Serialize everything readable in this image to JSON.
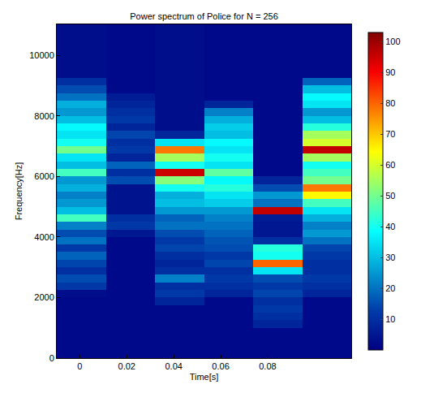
{
  "chart_data": {
    "type": "heatmap",
    "title": "Power spectrum of Police for N = 256",
    "x_label": "Time[s]",
    "y_label": "Frequency[Hz]",
    "x": [
      0.0007,
      0.0216,
      0.0425,
      0.0634,
      0.0843,
      0.1052
    ],
    "y": [
      125,
      375,
      625,
      875,
      1125,
      1375,
      1625,
      1875,
      2125,
      2375,
      2625,
      2875,
      3125,
      3375,
      3625,
      3875,
      4125,
      4375,
      4625,
      4875,
      5125,
      5375,
      5625,
      5875,
      6125,
      6375,
      6625,
      6875,
      7125,
      7375,
      7625,
      7875,
      8125,
      8375,
      8625,
      8875,
      9125,
      9375,
      9625,
      9875,
      10125,
      10375,
      10625,
      10875
    ],
    "cells": [
      [
        2,
        2,
        2,
        2,
        2,
        2,
        2,
        2,
        3,
        12,
        15,
        10,
        14,
        18,
        12,
        20,
        15,
        22,
        45,
        30,
        25,
        22,
        28,
        25,
        45,
        30,
        35,
        50,
        40,
        35,
        38,
        30,
        25,
        28,
        20,
        15,
        10,
        3,
        3,
        3,
        3,
        3,
        3,
        3
      ],
      [
        2,
        2,
        2,
        2,
        2,
        2,
        2,
        2,
        2,
        2,
        2,
        2,
        2,
        2,
        2,
        2,
        5,
        12,
        10,
        4,
        4,
        4,
        4,
        15,
        10,
        18,
        8,
        12,
        10,
        14,
        8,
        12,
        10,
        8,
        6,
        2,
        2,
        2,
        2,
        2,
        2,
        2,
        2,
        2
      ],
      [
        2,
        2,
        2,
        2,
        2,
        2,
        2,
        8,
        12,
        10,
        22,
        10,
        8,
        10,
        14,
        12,
        15,
        20,
        18,
        25,
        30,
        28,
        40,
        52,
        95,
        40,
        55,
        78,
        35,
        8,
        3,
        3,
        3,
        3,
        3,
        3,
        3,
        3,
        3,
        3,
        3,
        3,
        3,
        3
      ],
      [
        2,
        2,
        2,
        2,
        2,
        2,
        2,
        2,
        8,
        10,
        12,
        10,
        14,
        12,
        15,
        16,
        18,
        20,
        22,
        25,
        32,
        35,
        42,
        38,
        48,
        35,
        40,
        35,
        38,
        30,
        32,
        28,
        22,
        8,
        2,
        2,
        2,
        2,
        2,
        2,
        2,
        2,
        2,
        2
      ],
      [
        2,
        2,
        2,
        2,
        8,
        10,
        12,
        10,
        14,
        12,
        15,
        35,
        80,
        40,
        42,
        10,
        5,
        5,
        6,
        96,
        20,
        25,
        15,
        8,
        2,
        2,
        2,
        2,
        2,
        2,
        2,
        2,
        2,
        2,
        2,
        2,
        2,
        2,
        2,
        2,
        2,
        2,
        2,
        2
      ],
      [
        2,
        2,
        2,
        2,
        2,
        2,
        2,
        2,
        8,
        10,
        12,
        10,
        10,
        12,
        14,
        20,
        25,
        22,
        28,
        35,
        45,
        65,
        78,
        50,
        45,
        40,
        55,
        96,
        60,
        55,
        42,
        30,
        25,
        35,
        38,
        30,
        18,
        2,
        2,
        2,
        2,
        2,
        2,
        2
      ]
    ],
    "xlim": [
      -0.0098,
      0.1156
    ],
    "ylim": [
      0,
      11025
    ],
    "xticks": [
      0,
      0.02,
      0.04,
      0.06,
      0.08
    ],
    "yticks": [
      0,
      2000,
      4000,
      6000,
      8000,
      10000
    ],
    "zlim": [
      0,
      103
    ],
    "zticks": [
      10,
      20,
      30,
      40,
      50,
      60,
      70,
      80,
      90,
      100
    ]
  }
}
